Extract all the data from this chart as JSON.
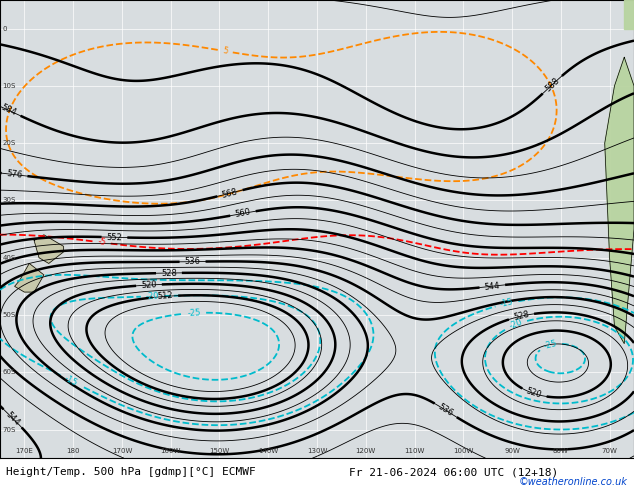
{
  "title": "Height/Temp. 500 hPa [gdmp][°C] ECMWF",
  "datetime_label": "Fr 21-06-2024 06:00 UTC (12+18)",
  "watermark": "©weatheronline.co.uk",
  "map_background": "#d8dde0",
  "bottom_bar_color": "#f0f0f0",
  "label_fontsize": 7,
  "title_fontsize": 8,
  "z500_color": "#000000",
  "temp_warm_color": "#ff8800",
  "temp_red_color": "#ff0000",
  "temp_cold_color": "#00bbcc",
  "lon_min": 165,
  "lon_max": 295,
  "lat_min": -75,
  "lat_max": 5
}
